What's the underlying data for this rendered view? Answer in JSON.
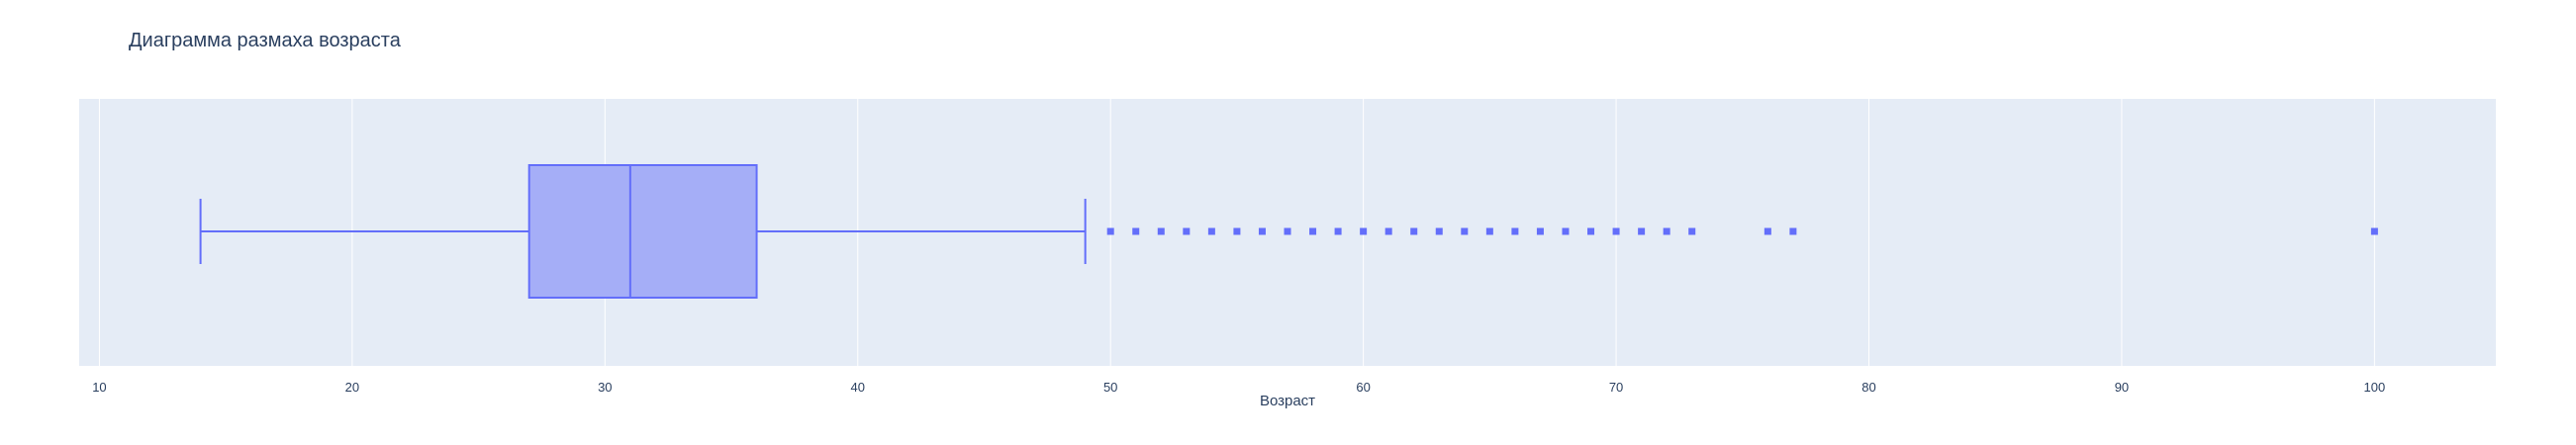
{
  "chart_data": {
    "type": "box",
    "title": "Диаграмма размаха возраста",
    "xlabel": "Возраст",
    "ylabel": "",
    "xlim": [
      9.2,
      104.8
    ],
    "xticks": [
      10,
      20,
      30,
      40,
      50,
      60,
      70,
      80,
      90,
      100
    ],
    "grid": true,
    "orientation": "horizontal",
    "box": {
      "lowerfence": 14,
      "q1": 27,
      "median": 31,
      "q3": 36,
      "upperfence": 49
    },
    "outliers": [
      50,
      51,
      52,
      53,
      54,
      55,
      56,
      57,
      58,
      59,
      60,
      61,
      62,
      63,
      64,
      65,
      66,
      67,
      68,
      69,
      70,
      71,
      72,
      73,
      76,
      77,
      100
    ],
    "colors": {
      "box_line": "#636efa",
      "box_fill": "#a5aef7",
      "plot_bg": "#e5ecf6",
      "grid": "#ffffff",
      "text": "#2a3f5f"
    }
  }
}
